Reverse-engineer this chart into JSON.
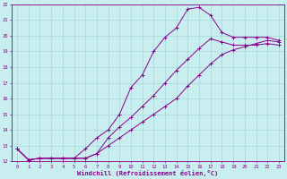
{
  "xlabel": "Windchill (Refroidissement éolien,°C)",
  "background_color": "#c8eef0",
  "grid_color": "#a8d8dc",
  "line_color": "#8b008b",
  "xlim": [
    -0.5,
    23.5
  ],
  "ylim": [
    12,
    22
  ],
  "xticks": [
    0,
    1,
    2,
    3,
    4,
    5,
    6,
    7,
    8,
    9,
    10,
    11,
    12,
    13,
    14,
    15,
    16,
    17,
    18,
    19,
    20,
    21,
    22,
    23
  ],
  "yticks": [
    12,
    13,
    14,
    15,
    16,
    17,
    18,
    19,
    20,
    21,
    22
  ],
  "curve1_x": [
    0,
    1,
    2,
    3,
    4,
    5,
    6,
    7,
    8,
    9,
    10,
    11,
    12,
    13,
    14,
    15,
    16,
    17,
    18,
    19,
    20,
    21,
    22,
    23
  ],
  "curve1_y": [
    12.8,
    12.1,
    12.2,
    12.2,
    12.2,
    12.2,
    12.8,
    13.5,
    14.0,
    15.0,
    16.7,
    17.5,
    19.0,
    19.9,
    20.5,
    21.7,
    21.8,
    21.3,
    20.2,
    19.9,
    19.9,
    19.9,
    19.9,
    19.7
  ],
  "curve2_x": [
    0,
    1,
    2,
    3,
    4,
    5,
    6,
    7,
    8,
    9,
    10,
    11,
    12,
    13,
    14,
    15,
    16,
    17,
    18,
    19,
    20,
    21,
    22,
    23
  ],
  "curve2_y": [
    12.8,
    12.1,
    12.2,
    12.2,
    12.2,
    12.2,
    12.2,
    12.5,
    13.0,
    13.5,
    14.0,
    14.5,
    15.0,
    15.5,
    16.0,
    16.8,
    17.5,
    18.2,
    18.8,
    19.1,
    19.3,
    19.5,
    19.7,
    19.6
  ],
  "curve3_x": [
    0,
    1,
    2,
    3,
    4,
    5,
    6,
    7,
    8,
    9,
    10,
    11,
    12,
    13,
    14,
    15,
    16,
    17,
    18,
    19,
    20,
    21,
    22,
    23
  ],
  "curve3_y": [
    12.8,
    12.1,
    12.2,
    12.2,
    12.2,
    12.2,
    12.2,
    12.5,
    13.5,
    14.2,
    14.8,
    15.5,
    16.2,
    17.0,
    17.8,
    18.5,
    19.2,
    19.8,
    19.6,
    19.4,
    19.4,
    19.4,
    19.5,
    19.4
  ]
}
